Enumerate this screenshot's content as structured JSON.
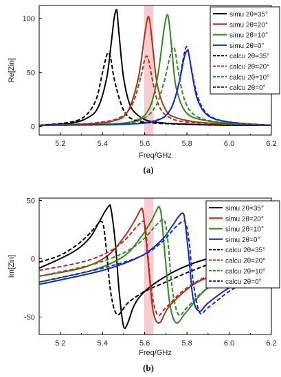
{
  "chart_data": [
    {
      "type": "line",
      "caption": "(a)",
      "xlabel": "Freq/GHz",
      "ylabel": "Re[Zin]",
      "xlim": [
        5.1,
        6.2
      ],
      "ylim": [
        -8,
        112
      ],
      "xticks": [
        "5.2",
        "5.4",
        "5.6",
        "5.8",
        "6.0",
        "6.2"
      ],
      "yticks": [
        "0",
        "50",
        "100"
      ],
      "grid": false,
      "legend_position": "top-right",
      "shaded_band": {
        "x_center": 5.62,
        "half_width": 0.022,
        "color": "#f2a0a8"
      },
      "series": [
        {
          "name": "simu 2θ=35°",
          "color": "#000000",
          "dash": "solid",
          "x": [
            5.1,
            5.25,
            5.33,
            5.38,
            5.42,
            5.44,
            5.455,
            5.465,
            5.47,
            5.48,
            5.5,
            5.53,
            5.57,
            5.62,
            5.7,
            5.8,
            6.0,
            6.2
          ],
          "y": [
            1,
            3,
            8,
            18,
            45,
            75,
            100,
            108,
            104,
            82,
            45,
            20,
            10,
            5,
            3,
            2,
            1,
            1
          ]
        },
        {
          "name": "simu 2θ=20°",
          "color": "#b03018",
          "dash": "solid",
          "x": [
            5.1,
            5.3,
            5.45,
            5.52,
            5.57,
            5.6,
            5.615,
            5.625,
            5.64,
            5.66,
            5.7,
            5.75,
            5.85,
            6.0,
            6.2
          ],
          "y": [
            1,
            2,
            5,
            14,
            45,
            85,
            101,
            96,
            70,
            38,
            15,
            8,
            4,
            2,
            1
          ]
        },
        {
          "name": "simu 2θ=10°",
          "color": "#2d8a1e",
          "dash": "solid",
          "x": [
            5.1,
            5.4,
            5.55,
            5.62,
            5.66,
            5.69,
            5.705,
            5.715,
            5.73,
            5.75,
            5.8,
            5.9,
            6.0,
            6.2
          ],
          "y": [
            1,
            2,
            5,
            16,
            45,
            88,
            103,
            97,
            68,
            35,
            12,
            5,
            3,
            1
          ]
        },
        {
          "name": "simu 2θ=0°",
          "color": "#1428c8",
          "dash": "solid",
          "x": [
            5.1,
            5.5,
            5.65,
            5.72,
            5.76,
            5.785,
            5.8,
            5.81,
            5.825,
            5.85,
            5.9,
            6.0,
            6.2
          ],
          "y": [
            1,
            2,
            5,
            15,
            38,
            62,
            70,
            66,
            48,
            25,
            10,
            4,
            1
          ]
        },
        {
          "name": "calcu 2θ=35°",
          "color": "#000000",
          "dash": "dashed",
          "x": [
            5.1,
            5.25,
            5.32,
            5.37,
            5.4,
            5.42,
            5.43,
            5.44,
            5.46,
            5.5,
            5.55,
            5.65,
            5.8,
            6.0,
            6.2
          ],
          "y": [
            1,
            4,
            10,
            25,
            50,
            66,
            68,
            62,
            40,
            15,
            6,
            3,
            2,
            1,
            1
          ]
        },
        {
          "name": "calcu 2θ=20°",
          "color": "#b03018",
          "dash": "dashed",
          "x": [
            5.1,
            5.35,
            5.48,
            5.54,
            5.58,
            5.6,
            5.61,
            5.62,
            5.64,
            5.67,
            5.72,
            5.8,
            6.0,
            6.2
          ],
          "y": [
            1,
            3,
            8,
            20,
            45,
            62,
            65,
            60,
            40,
            18,
            8,
            4,
            2,
            1
          ]
        },
        {
          "name": "calcu 2θ=10°",
          "color": "#2d8a1e",
          "dash": "dashed",
          "x": [
            5.1,
            5.45,
            5.58,
            5.65,
            5.69,
            5.72,
            5.735,
            5.745,
            5.76,
            5.79,
            5.84,
            5.95,
            6.2
          ],
          "y": [
            1,
            2,
            6,
            18,
            40,
            65,
            73,
            69,
            50,
            24,
            10,
            4,
            1
          ]
        },
        {
          "name": "calcu 2θ=0°",
          "color": "#1428c8",
          "dash": "dashed",
          "x": [
            5.1,
            5.5,
            5.66,
            5.72,
            5.76,
            5.78,
            5.795,
            5.805,
            5.82,
            5.85,
            5.9,
            6.0,
            6.2
          ],
          "y": [
            1,
            2,
            6,
            15,
            38,
            60,
            73,
            71,
            55,
            28,
            11,
            4,
            1
          ]
        }
      ]
    },
    {
      "type": "line",
      "caption": "(b)",
      "xlabel": "Freq/GHz",
      "ylabel": "Im[Zin]",
      "xlim": [
        5.1,
        6.2
      ],
      "ylim": [
        -65,
        52
      ],
      "xticks": [
        "5.2",
        "5.4",
        "5.6",
        "5.8",
        "6.0",
        "6.2"
      ],
      "yticks": [
        "50",
        "0",
        "-50"
      ],
      "grid": false,
      "legend_position": "top-right",
      "shaded_band": {
        "x_center": 5.62,
        "half_width": 0.022,
        "color": "#f2a0a8"
      },
      "series": [
        {
          "name": "simu 2θ=35°",
          "color": "#000000",
          "dash": "solid",
          "x": [
            5.1,
            5.2,
            5.28,
            5.34,
            5.38,
            5.41,
            5.43,
            5.44,
            5.46,
            5.48,
            5.5,
            5.52,
            5.55,
            5.6,
            5.7,
            5.8,
            5.9,
            6.0
          ],
          "y": [
            -8,
            0,
            8,
            18,
            30,
            40,
            45,
            43,
            15,
            -30,
            -58,
            -55,
            -40,
            -28,
            -15,
            -6,
            0,
            3
          ]
        },
        {
          "name": "simu 2θ=20°",
          "color": "#b03018",
          "dash": "solid",
          "x": [
            5.1,
            5.3,
            5.42,
            5.5,
            5.55,
            5.58,
            5.59,
            5.6,
            5.62,
            5.64,
            5.67,
            5.72,
            5.85,
            6.0,
            6.2
          ],
          "y": [
            -15,
            -8,
            2,
            18,
            32,
            42,
            42,
            28,
            -10,
            -45,
            -55,
            -40,
            -20,
            -12,
            -8
          ]
        },
        {
          "name": "simu 2θ=10°",
          "color": "#2d8a1e",
          "dash": "solid",
          "x": [
            5.1,
            5.35,
            5.5,
            5.58,
            5.63,
            5.66,
            5.67,
            5.68,
            5.7,
            5.72,
            5.75,
            5.8,
            5.9,
            6.05,
            6.2
          ],
          "y": [
            -20,
            -10,
            2,
            18,
            32,
            43,
            44,
            35,
            -5,
            -40,
            -55,
            -45,
            -25,
            -15,
            -10
          ]
        },
        {
          "name": "simu 2θ=0°",
          "color": "#1428c8",
          "dash": "solid",
          "x": [
            5.1,
            5.4,
            5.58,
            5.68,
            5.73,
            5.76,
            5.78,
            5.79,
            5.81,
            5.83,
            5.86,
            5.9,
            6.0,
            6.1,
            6.2
          ],
          "y": [
            -22,
            -10,
            2,
            16,
            28,
            36,
            39,
            33,
            0,
            -35,
            -45,
            -38,
            -25,
            -18,
            -13
          ]
        },
        {
          "name": "calcu 2θ=35°",
          "color": "#000000",
          "dash": "dashed",
          "x": [
            5.1,
            5.2,
            5.28,
            5.33,
            5.37,
            5.39,
            5.405,
            5.42,
            5.44,
            5.47,
            5.52,
            5.6,
            5.7,
            5.8,
            5.9
          ],
          "y": [
            -3,
            3,
            12,
            20,
            28,
            32,
            28,
            5,
            -30,
            -48,
            -38,
            -28,
            -20,
            -12,
            -5
          ]
        },
        {
          "name": "calcu 2θ=20°",
          "color": "#b03018",
          "dash": "dashed",
          "x": [
            5.1,
            5.3,
            5.42,
            5.5,
            5.56,
            5.59,
            5.6,
            5.61,
            5.63,
            5.66,
            5.7,
            5.8,
            5.95,
            6.2
          ],
          "y": [
            -10,
            -3,
            5,
            15,
            27,
            32,
            30,
            15,
            -25,
            -48,
            -42,
            -25,
            -12,
            -8
          ]
        },
        {
          "name": "calcu 2θ=10°",
          "color": "#2d8a1e",
          "dash": "dashed",
          "x": [
            5.1,
            5.35,
            5.5,
            5.59,
            5.65,
            5.68,
            5.695,
            5.71,
            5.73,
            5.76,
            5.8,
            5.9,
            6.05,
            6.2
          ],
          "y": [
            -15,
            -5,
            5,
            16,
            28,
            33,
            32,
            15,
            -25,
            -48,
            -42,
            -25,
            -15,
            -10
          ]
        },
        {
          "name": "calcu 2θ=0°",
          "color": "#1428c8",
          "dash": "dashed",
          "x": [
            5.1,
            5.4,
            5.58,
            5.68,
            5.74,
            5.78,
            5.795,
            5.81,
            5.83,
            5.86,
            5.9,
            6.0,
            6.1,
            6.2
          ],
          "y": [
            -20,
            -8,
            2,
            14,
            26,
            32,
            30,
            15,
            -20,
            -46,
            -42,
            -28,
            -18,
            -13
          ]
        }
      ]
    }
  ]
}
